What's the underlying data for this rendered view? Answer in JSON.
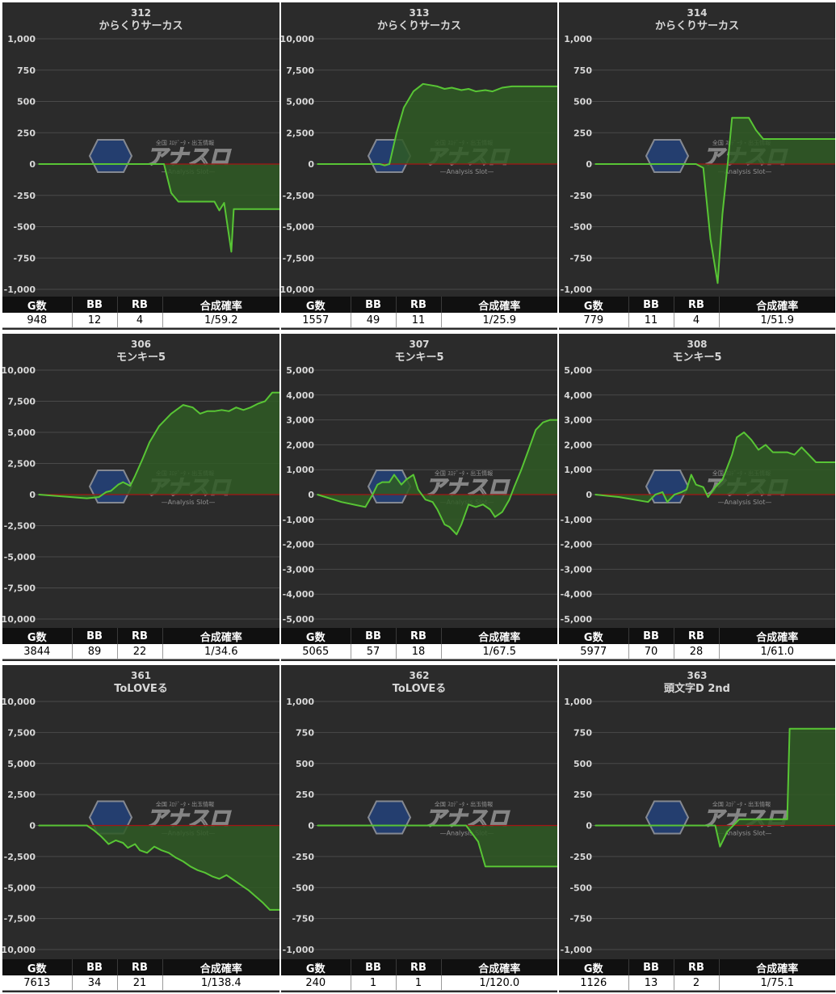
{
  "colors": {
    "panel_bg": "#2b2b2b",
    "grid": "#4a4a4a",
    "zero_line": "#a31515",
    "series_line": "#58c535",
    "series_fill": "#2f5a24",
    "text": "#d8d8d8",
    "table_header_bg": "#101010",
    "table_header_text": "#ffffff"
  },
  "watermark": {
    "icon": "analysis-slot-logo-icon",
    "small_text": "全国 ｽﾛﾃﾞｰﾀ・出玉情報",
    "main_text": "アナスロ",
    "sub_text": "—Analysis Slot—"
  },
  "table_headers": [
    "G数",
    "BB",
    "RB",
    "合成確率"
  ],
  "machines": [
    {
      "number": "312",
      "name": "からくりサーカス",
      "stats": [
        "948",
        "12",
        "4",
        "1/59.2"
      ],
      "chart_data": {
        "type": "area",
        "xlim": [
          0,
          100
        ],
        "ylim": [
          -1000,
          1000
        ],
        "yticks": [
          "1,000",
          "750",
          "500",
          "250",
          "0",
          "-250",
          "-500",
          "-750",
          "-1,000"
        ],
        "x": [
          0,
          52,
          55,
          58,
          60,
          68,
          73,
          75,
          77,
          80,
          81,
          83,
          100
        ],
        "y": [
          0,
          0,
          -230,
          -300,
          -300,
          -300,
          -300,
          -370,
          -310,
          -700,
          -360,
          -360,
          -360
        ]
      }
    },
    {
      "number": "313",
      "name": "からくりサーカス",
      "stats": [
        "1557",
        "49",
        "11",
        "1/25.9"
      ],
      "chart_data": {
        "type": "area",
        "xlim": [
          0,
          100
        ],
        "ylim": [
          -10000,
          10000
        ],
        "yticks": [
          "10,000",
          "7,500",
          "5,000",
          "2,500",
          "0",
          "-2,500",
          "-5,000",
          "-7,500",
          "-10,000"
        ],
        "x": [
          0,
          24,
          26,
          28,
          30,
          33,
          36,
          40,
          44,
          47,
          50,
          53,
          56,
          60,
          63,
          66,
          70,
          73,
          77,
          81,
          85,
          100
        ],
        "y": [
          0,
          0,
          0,
          -100,
          0,
          2500,
          4500,
          5800,
          6400,
          6300,
          6200,
          6000,
          6100,
          5900,
          6000,
          5800,
          5900,
          5800,
          6100,
          6200,
          6200,
          6200
        ]
      }
    },
    {
      "number": "314",
      "name": "からくりサーカス",
      "stats": [
        "779",
        "11",
        "4",
        "1/51.9"
      ],
      "chart_data": {
        "type": "area",
        "xlim": [
          0,
          100
        ],
        "ylim": [
          -1000,
          1000
        ],
        "yticks": [
          "1,000",
          "750",
          "500",
          "250",
          "0",
          "-250",
          "-500",
          "-750",
          "-1,000"
        ],
        "x": [
          0,
          40,
          42,
          45,
          48,
          51,
          53,
          55,
          57,
          60,
          64,
          67,
          70,
          100
        ],
        "y": [
          0,
          0,
          0,
          -30,
          -600,
          -950,
          -400,
          -30,
          370,
          370,
          370,
          270,
          200,
          200
        ]
      }
    },
    {
      "number": "306",
      "name": "モンキー5",
      "stats": [
        "3844",
        "89",
        "22",
        "1/34.6"
      ],
      "chart_data": {
        "type": "area",
        "xlim": [
          0,
          100
        ],
        "ylim": [
          -10000,
          10000
        ],
        "yticks": [
          "10,000",
          "7,500",
          "5,000",
          "2,500",
          "0",
          "-2,500",
          "-5,000",
          "-7,500",
          "-10,000"
        ],
        "x": [
          0,
          20,
          25,
          28,
          30,
          33,
          35,
          38,
          40,
          43,
          46,
          50,
          55,
          60,
          64,
          67,
          70,
          73,
          76,
          79,
          82,
          85,
          88,
          91,
          94,
          97,
          100
        ],
        "y": [
          0,
          -300,
          -200,
          200,
          300,
          800,
          1000,
          700,
          1500,
          2800,
          4200,
          5500,
          6500,
          7200,
          7000,
          6500,
          6700,
          6700,
          6800,
          6700,
          7000,
          6800,
          7000,
          7300,
          7500,
          8200,
          8200
        ]
      }
    },
    {
      "number": "307",
      "name": "モンキー5",
      "stats": [
        "5065",
        "57",
        "18",
        "1/67.5"
      ],
      "chart_data": {
        "type": "area",
        "xlim": [
          0,
          100
        ],
        "ylim": [
          -5000,
          5000
        ],
        "yticks": [
          "5,000",
          "4,000",
          "3,000",
          "2,000",
          "1,000",
          "0",
          "-1,000",
          "-2,000",
          "-3,000",
          "-4,000",
          "-5,000"
        ],
        "x": [
          0,
          10,
          20,
          23,
          25,
          27,
          30,
          32,
          35,
          37,
          40,
          42,
          45,
          48,
          50,
          53,
          55,
          58,
          60,
          63,
          66,
          69,
          72,
          74,
          77,
          80,
          82,
          85,
          88,
          91,
          94,
          97,
          100
        ],
        "y": [
          0,
          -300,
          -500,
          0,
          400,
          500,
          500,
          800,
          400,
          600,
          800,
          200,
          -200,
          -300,
          -600,
          -1200,
          -1300,
          -1600,
          -1200,
          -400,
          -500,
          -400,
          -600,
          -900,
          -700,
          -200,
          300,
          1000,
          1800,
          2600,
          2900,
          3000,
          3000
        ]
      }
    },
    {
      "number": "308",
      "name": "モンキー5",
      "stats": [
        "5977",
        "70",
        "28",
        "1/61.0"
      ],
      "chart_data": {
        "type": "area",
        "xlim": [
          0,
          100
        ],
        "ylim": [
          -5000,
          5000
        ],
        "yticks": [
          "5,000",
          "4,000",
          "3,000",
          "2,000",
          "1,000",
          "0",
          "-1,000",
          "-2,000",
          "-3,000",
          "-4,000",
          "-5,000"
        ],
        "x": [
          0,
          10,
          22,
          25,
          28,
          30,
          33,
          36,
          38,
          40,
          42,
          45,
          47,
          50,
          53,
          55,
          57,
          59,
          62,
          65,
          68,
          71,
          74,
          77,
          80,
          83,
          86,
          89,
          92,
          95,
          98,
          100
        ],
        "y": [
          0,
          -100,
          -300,
          0,
          100,
          -300,
          0,
          100,
          200,
          800,
          400,
          300,
          -100,
          300,
          600,
          1100,
          1600,
          2300,
          2500,
          2200,
          1800,
          2000,
          1700,
          1700,
          1700,
          1600,
          1900,
          1600,
          1300,
          1300,
          1300,
          1300
        ]
      }
    },
    {
      "number": "361",
      "name": "ToLOVEる",
      "stats": [
        "7613",
        "34",
        "21",
        "1/138.4"
      ],
      "chart_data": {
        "type": "area",
        "xlim": [
          0,
          100
        ],
        "ylim": [
          -10000,
          10000
        ],
        "yticks": [
          "10,000",
          "7,500",
          "5,000",
          "2,500",
          "0",
          "-2,500",
          "-5,000",
          "-7,500",
          "-10,000"
        ],
        "x": [
          0,
          20,
          23,
          26,
          29,
          32,
          35,
          37,
          40,
          42,
          45,
          48,
          51,
          54,
          57,
          60,
          63,
          66,
          69,
          72,
          75,
          78,
          81,
          84,
          87,
          90,
          93,
          96,
          100
        ],
        "y": [
          0,
          0,
          -400,
          -900,
          -1500,
          -1200,
          -1400,
          -1800,
          -1500,
          -2000,
          -2200,
          -1700,
          -2000,
          -2200,
          -2600,
          -2900,
          -3300,
          -3600,
          -3800,
          -4100,
          -4300,
          -4000,
          -4400,
          -4800,
          -5200,
          -5700,
          -6200,
          -6800,
          -6800
        ]
      }
    },
    {
      "number": "362",
      "name": "ToLOVEる",
      "stats": [
        "240",
        "1",
        "1",
        "1/120.0"
      ],
      "chart_data": {
        "type": "area",
        "xlim": [
          0,
          100
        ],
        "ylim": [
          -1000,
          1000
        ],
        "yticks": [
          "1,000",
          "750",
          "500",
          "250",
          "0",
          "-250",
          "-500",
          "-750",
          "-1,000"
        ],
        "x": [
          0,
          60,
          62,
          67,
          70,
          100
        ],
        "y": [
          0,
          0,
          0,
          -130,
          -330,
          -330
        ]
      }
    },
    {
      "number": "363",
      "name": "頭文字D 2nd",
      "stats": [
        "1126",
        "13",
        "2",
        "1/75.1"
      ],
      "chart_data": {
        "type": "area",
        "xlim": [
          0,
          100
        ],
        "ylim": [
          -1000,
          1000
        ],
        "yticks": [
          "1,000",
          "750",
          "500",
          "250",
          "0",
          "-250",
          "-500",
          "-750",
          "-1,000"
        ],
        "x": [
          0,
          44,
          47,
          50,
          52,
          55,
          60,
          63,
          66,
          69,
          72,
          75,
          78,
          80,
          81,
          100
        ],
        "y": [
          0,
          0,
          0,
          0,
          -170,
          -50,
          50,
          50,
          50,
          50,
          50,
          50,
          50,
          50,
          780,
          780
        ]
      }
    }
  ]
}
